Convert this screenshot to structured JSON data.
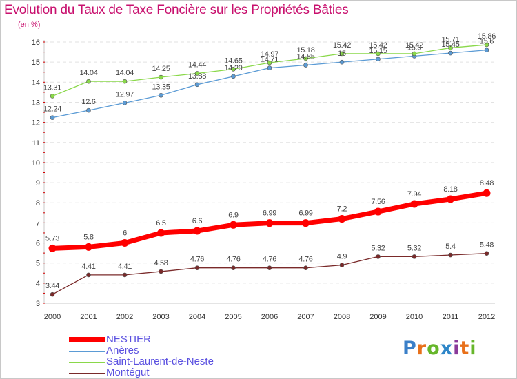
{
  "header": {
    "title": "Evolution du Taux de Taxe Foncière sur les Propriétés Bâties",
    "subtitle": "(en %)"
  },
  "brand": {
    "text": "Proxiti",
    "letter_colors": [
      "#3a7fc8",
      "#e8701a",
      "#66b62a",
      "#2e86c8",
      "#8a3a9a",
      "#e8701a",
      "#66b62a"
    ]
  },
  "chart_data": {
    "type": "line",
    "title": "Evolution du Taux de Taxe Foncière sur les Propriétés Bâties",
    "subtitle": "(en %)",
    "xlabel": "",
    "ylabel": "",
    "x": [
      "2000",
      "2001",
      "2002",
      "2003",
      "2004",
      "2005",
      "2006",
      "2007",
      "2008",
      "2009",
      "2010",
      "2011",
      "2012"
    ],
    "ylim": [
      3,
      16
    ],
    "yticks": [
      "3",
      "4",
      "5",
      "6",
      "7",
      "8",
      "9",
      "10",
      "11",
      "12",
      "13",
      "14",
      "15",
      "16"
    ],
    "grid": true,
    "legend_position": "bottom-left",
    "series": [
      {
        "name": "NESTIER",
        "color": "#ff0000",
        "values": [
          5.73,
          5.8,
          6,
          6.5,
          6.6,
          6.9,
          6.99,
          6.99,
          7.2,
          7.56,
          7.94,
          8.18,
          8.48
        ],
        "labels": [
          "5.73",
          "5.8",
          "6",
          "6.5",
          "6.6",
          "6.9",
          "6.99",
          "6.99",
          "7.2",
          "7.56",
          "7.94",
          "8.18",
          "8.48"
        ]
      },
      {
        "name": "Anères",
        "color": "#5b9bd5",
        "values": [
          12.24,
          12.6,
          12.97,
          13.35,
          13.88,
          14.29,
          14.71,
          14.85,
          15,
          15.15,
          15.3,
          15.45,
          15.6
        ],
        "labels": [
          "12.24",
          "12.6",
          "12.97",
          "13.35",
          "13.88",
          "14.29",
          "14.71",
          "14.85",
          "15",
          "15.15",
          "15.3",
          "15.45",
          "15.6"
        ]
      },
      {
        "name": "Saint-Laurent-de-Neste",
        "color": "#8ad84a",
        "values": [
          13.31,
          14.04,
          14.04,
          14.25,
          14.44,
          14.65,
          14.97,
          15.18,
          15.42,
          15.42,
          15.42,
          15.71,
          15.86
        ],
        "labels": [
          "13.31",
          "14.04",
          "14.04",
          "14.25",
          "14.44",
          "14.65",
          "14.97",
          "15.18",
          "15.42",
          "15.42",
          "15.42",
          "15.71",
          "15.86"
        ]
      },
      {
        "name": "Montégut",
        "color": "#7a2a2a",
        "values": [
          3.44,
          4.41,
          4.41,
          4.58,
          4.76,
          4.76,
          4.76,
          4.76,
          4.9,
          5.32,
          5.32,
          5.4,
          5.48
        ],
        "labels": [
          "3.44",
          "4.41",
          "4.41",
          "4.58",
          "4.76",
          "4.76",
          "4.76",
          "4.76",
          "4.9",
          "5.32",
          "5.32",
          "5.4",
          "5.48"
        ]
      }
    ]
  }
}
